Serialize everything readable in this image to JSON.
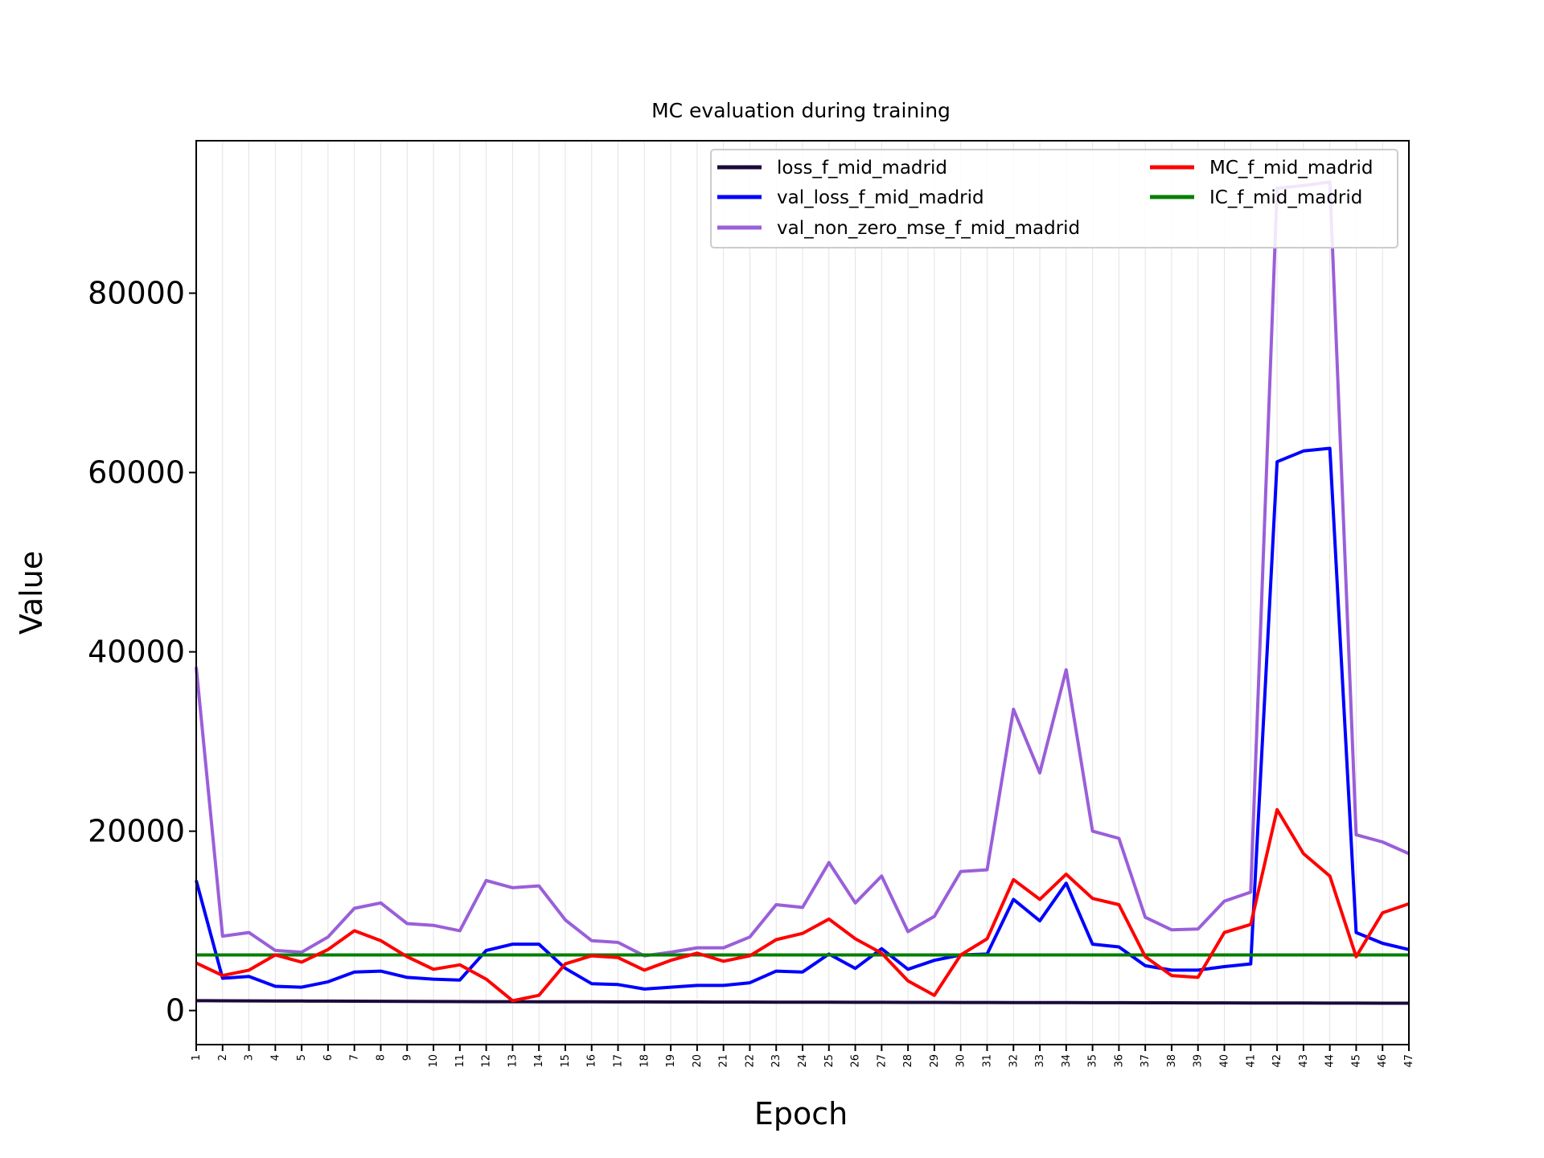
{
  "chart_data": {
    "type": "line",
    "title": "MC evaluation during training",
    "xlabel": "Epoch",
    "ylabel": "Value",
    "ylim": [
      -3800,
      97000
    ],
    "yticks": [
      0,
      20000,
      40000,
      60000,
      80000
    ],
    "x": [
      1,
      2,
      3,
      4,
      5,
      6,
      7,
      8,
      9,
      10,
      11,
      12,
      13,
      14,
      15,
      16,
      17,
      18,
      19,
      20,
      21,
      22,
      23,
      24,
      25,
      26,
      27,
      28,
      29,
      30,
      31,
      32,
      33,
      34,
      35,
      36,
      37,
      38,
      39,
      40,
      41,
      42,
      43,
      44,
      45,
      46,
      47
    ],
    "grid": "vertical",
    "legend_position": "top-right",
    "series": [
      {
        "name": "loss_f_mid_madrid",
        "color": "#1a0a3c",
        "values": [
          1100,
          1090,
          1080,
          1070,
          1060,
          1050,
          1040,
          1030,
          1020,
          1010,
          1000,
          990,
          985,
          980,
          975,
          970,
          965,
          960,
          955,
          950,
          945,
          940,
          935,
          930,
          925,
          920,
          915,
          910,
          905,
          900,
          895,
          890,
          885,
          880,
          875,
          870,
          865,
          860,
          855,
          850,
          845,
          840,
          835,
          830,
          825,
          820,
          815
        ]
      },
      {
        "name": "val_loss_f_mid_madrid",
        "color": "#0000ff",
        "values": [
          14500,
          3600,
          3800,
          2700,
          2600,
          3200,
          4300,
          4400,
          3700,
          3500,
          3400,
          6700,
          7400,
          7400,
          4700,
          3000,
          2900,
          2400,
          2600,
          2800,
          2800,
          3100,
          4400,
          4300,
          6300,
          4700,
          6900,
          4600,
          5600,
          6200,
          6300,
          12400,
          10000,
          14200,
          7400,
          7100,
          5000,
          4500,
          4500,
          4900,
          5200,
          61200,
          62400,
          62700,
          8700,
          7500,
          6800
        ]
      },
      {
        "name": "val_non_zero_mse_f_mid_madrid",
        "color": "#9a5fd9",
        "values": [
          38300,
          8300,
          8700,
          6700,
          6500,
          8200,
          11400,
          12000,
          9700,
          9500,
          8900,
          14500,
          13700,
          13900,
          10100,
          7800,
          7600,
          6100,
          6500,
          7000,
          7000,
          8200,
          11800,
          11500,
          16500,
          12000,
          15000,
          8800,
          10500,
          15500,
          15700,
          33600,
          26500,
          38000,
          20000,
          19200,
          10400,
          9000,
          9100,
          12200,
          13200,
          91700,
          92000,
          92400,
          19600,
          18800,
          17500
        ]
      },
      {
        "name": "MC_f_mid_madrid",
        "color": "#ff0000",
        "values": [
          5300,
          3900,
          4500,
          6200,
          5400,
          6800,
          8900,
          7800,
          6000,
          4600,
          5100,
          3500,
          1100,
          1700,
          5200,
          6100,
          5900,
          4500,
          5600,
          6400,
          5500,
          6100,
          7900,
          8600,
          10200,
          8000,
          6400,
          3300,
          1700,
          6200,
          8000,
          14600,
          12400,
          15200,
          12500,
          11800,
          6000,
          3900,
          3700,
          8700,
          9600,
          22400,
          17500,
          15000,
          6000,
          10900,
          11900
        ]
      },
      {
        "name": "IC_f_mid_madrid",
        "color": "#008000",
        "values": [
          6200,
          6200,
          6200,
          6200,
          6200,
          6200,
          6200,
          6200,
          6200,
          6200,
          6200,
          6200,
          6200,
          6200,
          6200,
          6200,
          6200,
          6200,
          6200,
          6200,
          6200,
          6200,
          6200,
          6200,
          6200,
          6200,
          6200,
          6200,
          6200,
          6200,
          6200,
          6200,
          6200,
          6200,
          6200,
          6200,
          6200,
          6200,
          6200,
          6200,
          6200,
          6200,
          6200,
          6200,
          6200,
          6200,
          6200
        ]
      }
    ]
  }
}
